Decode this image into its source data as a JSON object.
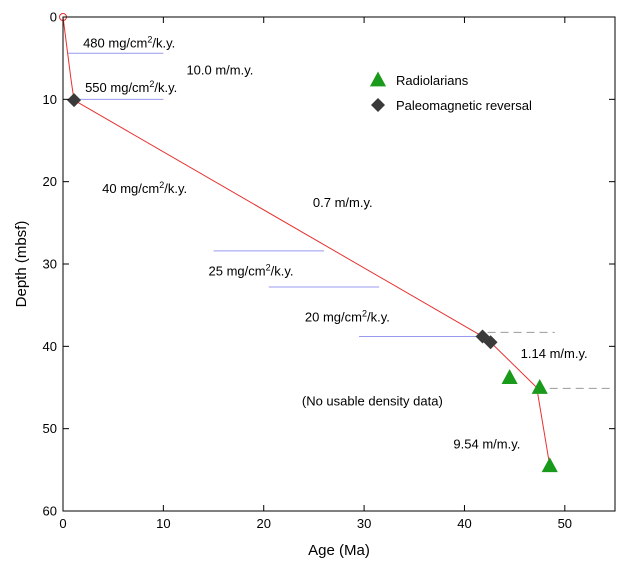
{
  "chart_data": {
    "type": "scatter",
    "xlabel": "Age (Ma)",
    "ylabel": "Depth (mbsf)",
    "xlim": [
      0,
      55
    ],
    "ylim": [
      0,
      60
    ],
    "y_inverted": true,
    "x_ticks": [
      0,
      10,
      20,
      30,
      40,
      50
    ],
    "y_ticks": [
      0,
      10,
      20,
      30,
      40,
      50,
      60
    ],
    "grid": false,
    "legend_position": "top-right",
    "legend": [
      {
        "label": "Radiolarians",
        "marker": "triangle",
        "color": "#1a9a1a"
      },
      {
        "label": "Paleomagnetic reversal",
        "marker": "diamond",
        "color": "#3a3a3a"
      }
    ],
    "series": [
      {
        "name": "Radiolarians",
        "marker": "triangle",
        "color": "#1a9a1a",
        "points": [
          [
            44.5,
            43.8
          ],
          [
            47.5,
            45.0
          ],
          [
            48.5,
            54.5
          ]
        ]
      },
      {
        "name": "Paleomagnetic reversal",
        "marker": "diamond",
        "color": "#3a3a3a",
        "points": [
          [
            1.1,
            10.1
          ],
          [
            41.8,
            38.8
          ],
          [
            42.6,
            39.5
          ]
        ]
      }
    ],
    "age_depth_line": {
      "color": "#e83030",
      "points": [
        [
          0,
          0
        ],
        [
          0.8,
          7.6
        ],
        [
          1.1,
          10.1
        ],
        [
          41.8,
          38.8
        ],
        [
          42.6,
          39.5
        ],
        [
          47.2,
          45.0
        ],
        [
          48.5,
          54.5
        ]
      ]
    },
    "origin_marker": {
      "x": 0,
      "y": 0,
      "color": "#e83030"
    },
    "mar_lines": [
      {
        "x0": 0.5,
        "x1": 10,
        "y": 4.4,
        "color": "#9999ee"
      },
      {
        "x0": 0.9,
        "x1": 10,
        "y": 10.0,
        "color": "#9999ee"
      },
      {
        "x0": 15,
        "x1": 26,
        "y": 28.4,
        "color": "#9999ee"
      },
      {
        "x0": 20.5,
        "x1": 31.5,
        "y": 32.8,
        "color": "#9999ee"
      },
      {
        "x0": 29.5,
        "x1": 41.5,
        "y": 38.8,
        "color": "#9999ee"
      }
    ],
    "dashed_lines": [
      {
        "x0": 42.3,
        "x1": 49,
        "y": 38.3,
        "color": "#999999"
      },
      {
        "x0": 47.2,
        "x1": 55,
        "y": 45.1,
        "color": "#999999"
      }
    ],
    "annotations": [
      {
        "id": "mar1",
        "x": 2.0,
        "y": 3.7,
        "base": "480 mg/cm",
        "sup": "2",
        "tail": "/k.y."
      },
      {
        "id": "sr1",
        "x": 12.3,
        "y": 7.0,
        "text": "10.0 m/m.y."
      },
      {
        "id": "mar2",
        "x": 2.2,
        "y": 9.1,
        "base": "550 mg/cm",
        "sup": "2",
        "tail": "/k.y."
      },
      {
        "id": "mar3",
        "x": 3.9,
        "y": 21.4,
        "base": "40 mg/cm",
        "sup": "2",
        "tail": "/k.y."
      },
      {
        "id": "sr2",
        "x": 24.9,
        "y": 23.1,
        "text": "0.7 m/m.y."
      },
      {
        "id": "mar4",
        "x": 14.5,
        "y": 31.4,
        "base": "25 mg/cm",
        "sup": "2",
        "tail": "/k.y."
      },
      {
        "id": "mar5",
        "x": 24.1,
        "y": 37.0,
        "base": "20 mg/cm",
        "sup": "2",
        "tail": "/k.y."
      },
      {
        "id": "sr3",
        "x": 45.6,
        "y": 41.4,
        "text": "1.14 m/m.y."
      },
      {
        "id": "nodata",
        "x": 23.8,
        "y": 47.2,
        "text": "(No usable density data)"
      },
      {
        "id": "sr4",
        "x": 38.9,
        "y": 52.4,
        "text": "9.54 m/m.y."
      }
    ]
  }
}
